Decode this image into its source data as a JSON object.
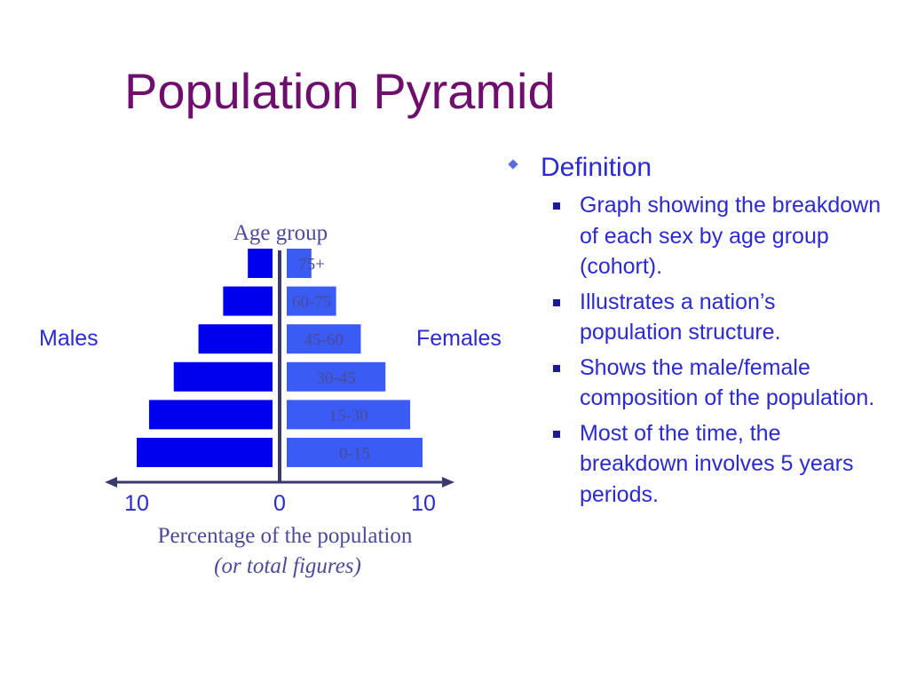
{
  "title": "Population Pyramid",
  "pyramid": {
    "axis_title_top": "Age group",
    "males_label": "Males",
    "females_label": "Females",
    "age_groups": [
      "75+",
      "60-75",
      "45-60",
      "30-45",
      "15-30",
      "0-15"
    ],
    "males": [
      2,
      4,
      6,
      8,
      10,
      11
    ],
    "females": [
      2,
      4,
      6,
      8,
      10,
      11
    ],
    "x_ticks": [
      "10",
      "0",
      "10"
    ],
    "x_title": "Percentage of the population",
    "x_subtitle": "(or total figures)",
    "colors": {
      "male": "#0000ee",
      "female": "#3a5cf5",
      "axis": "#3a3a6a",
      "label": "#4a4a9a"
    }
  },
  "definition": {
    "heading": "Definition",
    "bullets": [
      "Graph showing the breakdown of each sex by age group (cohort).",
      "Illustrates a nation’s population structure.",
      "Shows the male/female composition of the population.",
      "Most of the time, the breakdown involves 5 years periods."
    ]
  }
}
